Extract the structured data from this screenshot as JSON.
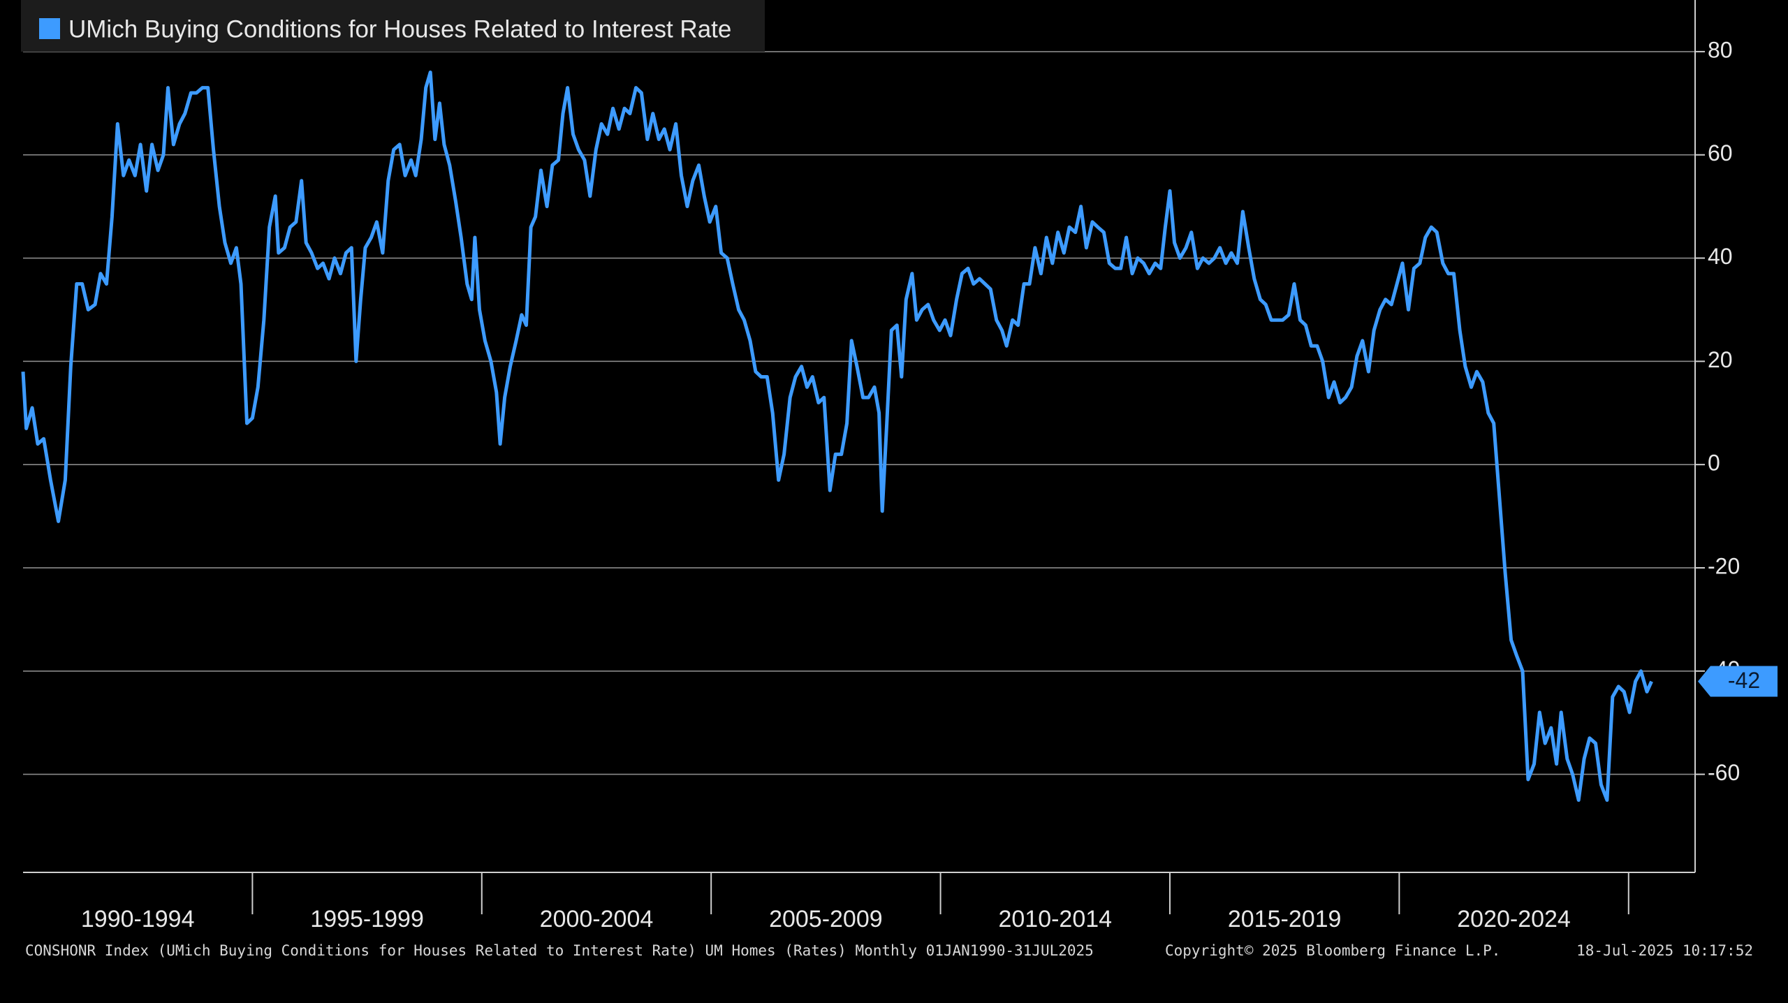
{
  "chart_data": {
    "type": "line",
    "series": [
      {
        "name": "UMich Buying Conditions for Houses Related to Interest Rate",
        "color": "#3d9bff",
        "x": [
          1990.0,
          1990.07,
          1990.2,
          1990.32,
          1990.45,
          1990.6,
          1990.77,
          1990.92,
          1991.04,
          1991.17,
          1991.29,
          1991.42,
          1991.57,
          1991.69,
          1991.82,
          1991.94,
          1992.06,
          1992.19,
          1992.31,
          1992.44,
          1992.56,
          1992.69,
          1992.81,
          1992.94,
          1993.06,
          1993.16,
          1993.28,
          1993.41,
          1993.53,
          1993.66,
          1993.78,
          1993.91,
          1994.03,
          1994.15,
          1994.28,
          1994.4,
          1994.53,
          1994.65,
          1994.75,
          1994.88,
          1995.0,
          1995.12,
          1995.25,
          1995.37,
          1995.5,
          1995.57,
          1995.7,
          1995.82,
          1995.95,
          1996.07,
          1996.17,
          1996.29,
          1996.42,
          1996.54,
          1996.67,
          1996.79,
          1996.92,
          1997.04,
          1997.16,
          1997.26,
          1997.36,
          1997.46,
          1997.59,
          1997.71,
          1997.84,
          1997.96,
          1998.08,
          1998.21,
          1998.33,
          1998.46,
          1998.56,
          1998.68,
          1998.78,
          1998.88,
          1998.98,
          1999.08,
          1999.18,
          1999.3,
          1999.43,
          1999.55,
          1999.68,
          1999.78,
          1999.85,
          1999.95,
          2000.07,
          2000.2,
          2000.32,
          2000.4,
          2000.5,
          2000.62,
          2000.75,
          2000.87,
          2000.97,
          2001.07,
          2001.17,
          2001.29,
          2001.42,
          2001.54,
          2001.67,
          2001.77,
          2001.87,
          2001.99,
          2002.11,
          2002.24,
          2002.36,
          2002.49,
          2002.61,
          2002.74,
          2002.86,
          2002.99,
          2003.11,
          2003.23,
          2003.36,
          2003.48,
          2003.61,
          2003.73,
          2003.86,
          2003.98,
          2004.1,
          2004.23,
          2004.35,
          2004.48,
          2004.6,
          2004.73,
          2004.85,
          2004.97,
          2005.1,
          2005.22,
          2005.35,
          2005.47,
          2005.6,
          2005.72,
          2005.85,
          2005.97,
          2006.09,
          2006.22,
          2006.34,
          2006.47,
          2006.59,
          2006.72,
          2006.84,
          2006.97,
          2007.09,
          2007.21,
          2007.34,
          2007.46,
          2007.59,
          2007.71,
          2007.84,
          2007.96,
          2008.06,
          2008.18,
          2008.31,
          2008.43,
          2008.56,
          2008.66,
          2008.73,
          2008.83,
          2008.93,
          2009.05,
          2009.15,
          2009.25,
          2009.38,
          2009.48,
          2009.6,
          2009.73,
          2009.85,
          2009.98,
          2010.1,
          2010.22,
          2010.35,
          2010.47,
          2010.6,
          2010.72,
          2010.85,
          2010.97,
          2011.09,
          2011.22,
          2011.34,
          2011.44,
          2011.57,
          2011.69,
          2011.82,
          2011.94,
          2012.06,
          2012.19,
          2012.31,
          2012.44,
          2012.56,
          2012.69,
          2012.81,
          2012.94,
          2013.06,
          2013.18,
          2013.31,
          2013.43,
          2013.56,
          2013.68,
          2013.81,
          2013.93,
          2014.05,
          2014.18,
          2014.3,
          2014.43,
          2014.55,
          2014.68,
          2014.8,
          2014.9,
          2015.0,
          2015.1,
          2015.22,
          2015.35,
          2015.47,
          2015.6,
          2015.72,
          2015.85,
          2015.97,
          2016.09,
          2016.22,
          2016.34,
          2016.47,
          2016.59,
          2016.72,
          2016.84,
          2016.97,
          2017.09,
          2017.21,
          2017.34,
          2017.46,
          2017.59,
          2017.71,
          2017.84,
          2017.96,
          2018.08,
          2018.21,
          2018.33,
          2018.46,
          2018.58,
          2018.71,
          2018.83,
          2018.96,
          2019.08,
          2019.2,
          2019.33,
          2019.45,
          2019.58,
          2019.7,
          2019.83,
          2019.95,
          2020.07,
          2020.2,
          2020.32,
          2020.45,
          2020.57,
          2020.7,
          2020.82,
          2020.95,
          2021.07,
          2021.19,
          2021.32,
          2021.44,
          2021.57,
          2021.69,
          2021.82,
          2021.94,
          2022.06,
          2022.19,
          2022.31,
          2022.44,
          2022.56,
          2022.69,
          2022.81,
          2022.94,
          2023.06,
          2023.18,
          2023.31,
          2023.43,
          2023.53,
          2023.66,
          2023.78,
          2023.91,
          2024.03,
          2024.15,
          2024.28,
          2024.4,
          2024.53,
          2024.65,
          2024.78,
          2024.9,
          2025.02,
          2025.15,
          2025.27,
          2025.4,
          2025.5
        ],
        "values": [
          18,
          7,
          11,
          4,
          5,
          -3,
          -11,
          -3,
          19,
          35,
          35,
          30,
          31,
          37,
          35,
          48,
          66,
          56,
          59,
          56,
          62,
          53,
          62,
          57,
          60,
          73,
          62,
          66,
          68,
          72,
          72,
          73,
          73,
          61,
          50,
          43,
          39,
          42,
          35,
          8,
          9,
          15,
          28,
          46,
          52,
          41,
          42,
          46,
          47,
          55,
          43,
          41,
          38,
          39,
          36,
          40,
          37,
          41,
          42,
          20,
          32,
          42,
          44,
          47,
          41,
          55,
          61,
          62,
          56,
          59,
          56,
          63,
          73,
          76,
          63,
          70,
          62,
          58,
          51,
          44,
          35,
          32,
          44,
          30,
          24,
          20,
          14,
          4,
          13,
          19,
          24,
          29,
          27,
          46,
          48,
          57,
          50,
          58,
          59,
          68,
          73,
          64,
          61,
          59,
          52,
          61,
          66,
          64,
          69,
          65,
          69,
          68,
          73,
          72,
          63,
          68,
          63,
          65,
          61,
          66,
          56,
          50,
          55,
          58,
          52,
          47,
          50,
          41,
          40,
          35,
          30,
          28,
          24,
          18,
          17,
          17,
          10,
          -3,
          2,
          13,
          17,
          19,
          15,
          17,
          12,
          13,
          -5,
          2,
          2,
          8,
          24,
          19,
          13,
          13,
          15,
          10,
          -9,
          8,
          26,
          27,
          17,
          32,
          37,
          28,
          30,
          31,
          28,
          26,
          28,
          25,
          32,
          37,
          38,
          35,
          36,
          35,
          34,
          28,
          26,
          23,
          28,
          27,
          35,
          35,
          42,
          37,
          44,
          39,
          45,
          41,
          46,
          45,
          50,
          42,
          47,
          46,
          45,
          39,
          38,
          38,
          44,
          37,
          40,
          39,
          37,
          39,
          38,
          46,
          53,
          43,
          40,
          42,
          45,
          38,
          40,
          39,
          40,
          42,
          39,
          41,
          39,
          49,
          42,
          36,
          32,
          31,
          28,
          28,
          28,
          29,
          35,
          28,
          27,
          23,
          23,
          20,
          13,
          16,
          12,
          13,
          15,
          21,
          24,
          18,
          26,
          30,
          32,
          31,
          35,
          39,
          30,
          38,
          39,
          44,
          46,
          45,
          39,
          37,
          37,
          26,
          19,
          15,
          18,
          16,
          10,
          8,
          -7,
          -21,
          -34,
          -37,
          -40,
          -61,
          -58,
          -48,
          -54,
          -51,
          -58,
          -48,
          -57,
          -60,
          -65,
          -57,
          -53,
          -54,
          -62,
          -65,
          -45,
          -43,
          -44,
          -48,
          -42,
          -40,
          -44,
          -42
        ]
      }
    ],
    "xlim": [
      1990,
      2026.45
    ],
    "xboundaries": [
      1995,
      2000,
      2005,
      2010,
      2015,
      2020,
      2025
    ],
    "xticks": [
      {
        "value": 1992.5,
        "label": "1990-1994"
      },
      {
        "value": 1997.5,
        "label": "1995-1999"
      },
      {
        "value": 2002.5,
        "label": "2000-2004"
      },
      {
        "value": 2007.5,
        "label": "2005-2009"
      },
      {
        "value": 2012.5,
        "label": "2010-2014"
      },
      {
        "value": 2017.5,
        "label": "2015-2019"
      },
      {
        "value": 2022.5,
        "label": "2020-2024"
      }
    ],
    "ylim": [
      -79,
      90
    ],
    "yticks": [
      80,
      60,
      40,
      20,
      0,
      -20,
      -40,
      -60
    ],
    "grid": true,
    "legend": "top-left",
    "footer": {
      "source": "CONSHONR Index (UMich Buying Conditions for Houses Related to Interest Rate) UM Homes (Rates)  Monthly 01JAN1990-31JUL2025",
      "copyright": "Copyright© 2025 Bloomberg Finance L.P.",
      "timestamp": "18-Jul-2025 10:17:52"
    }
  }
}
